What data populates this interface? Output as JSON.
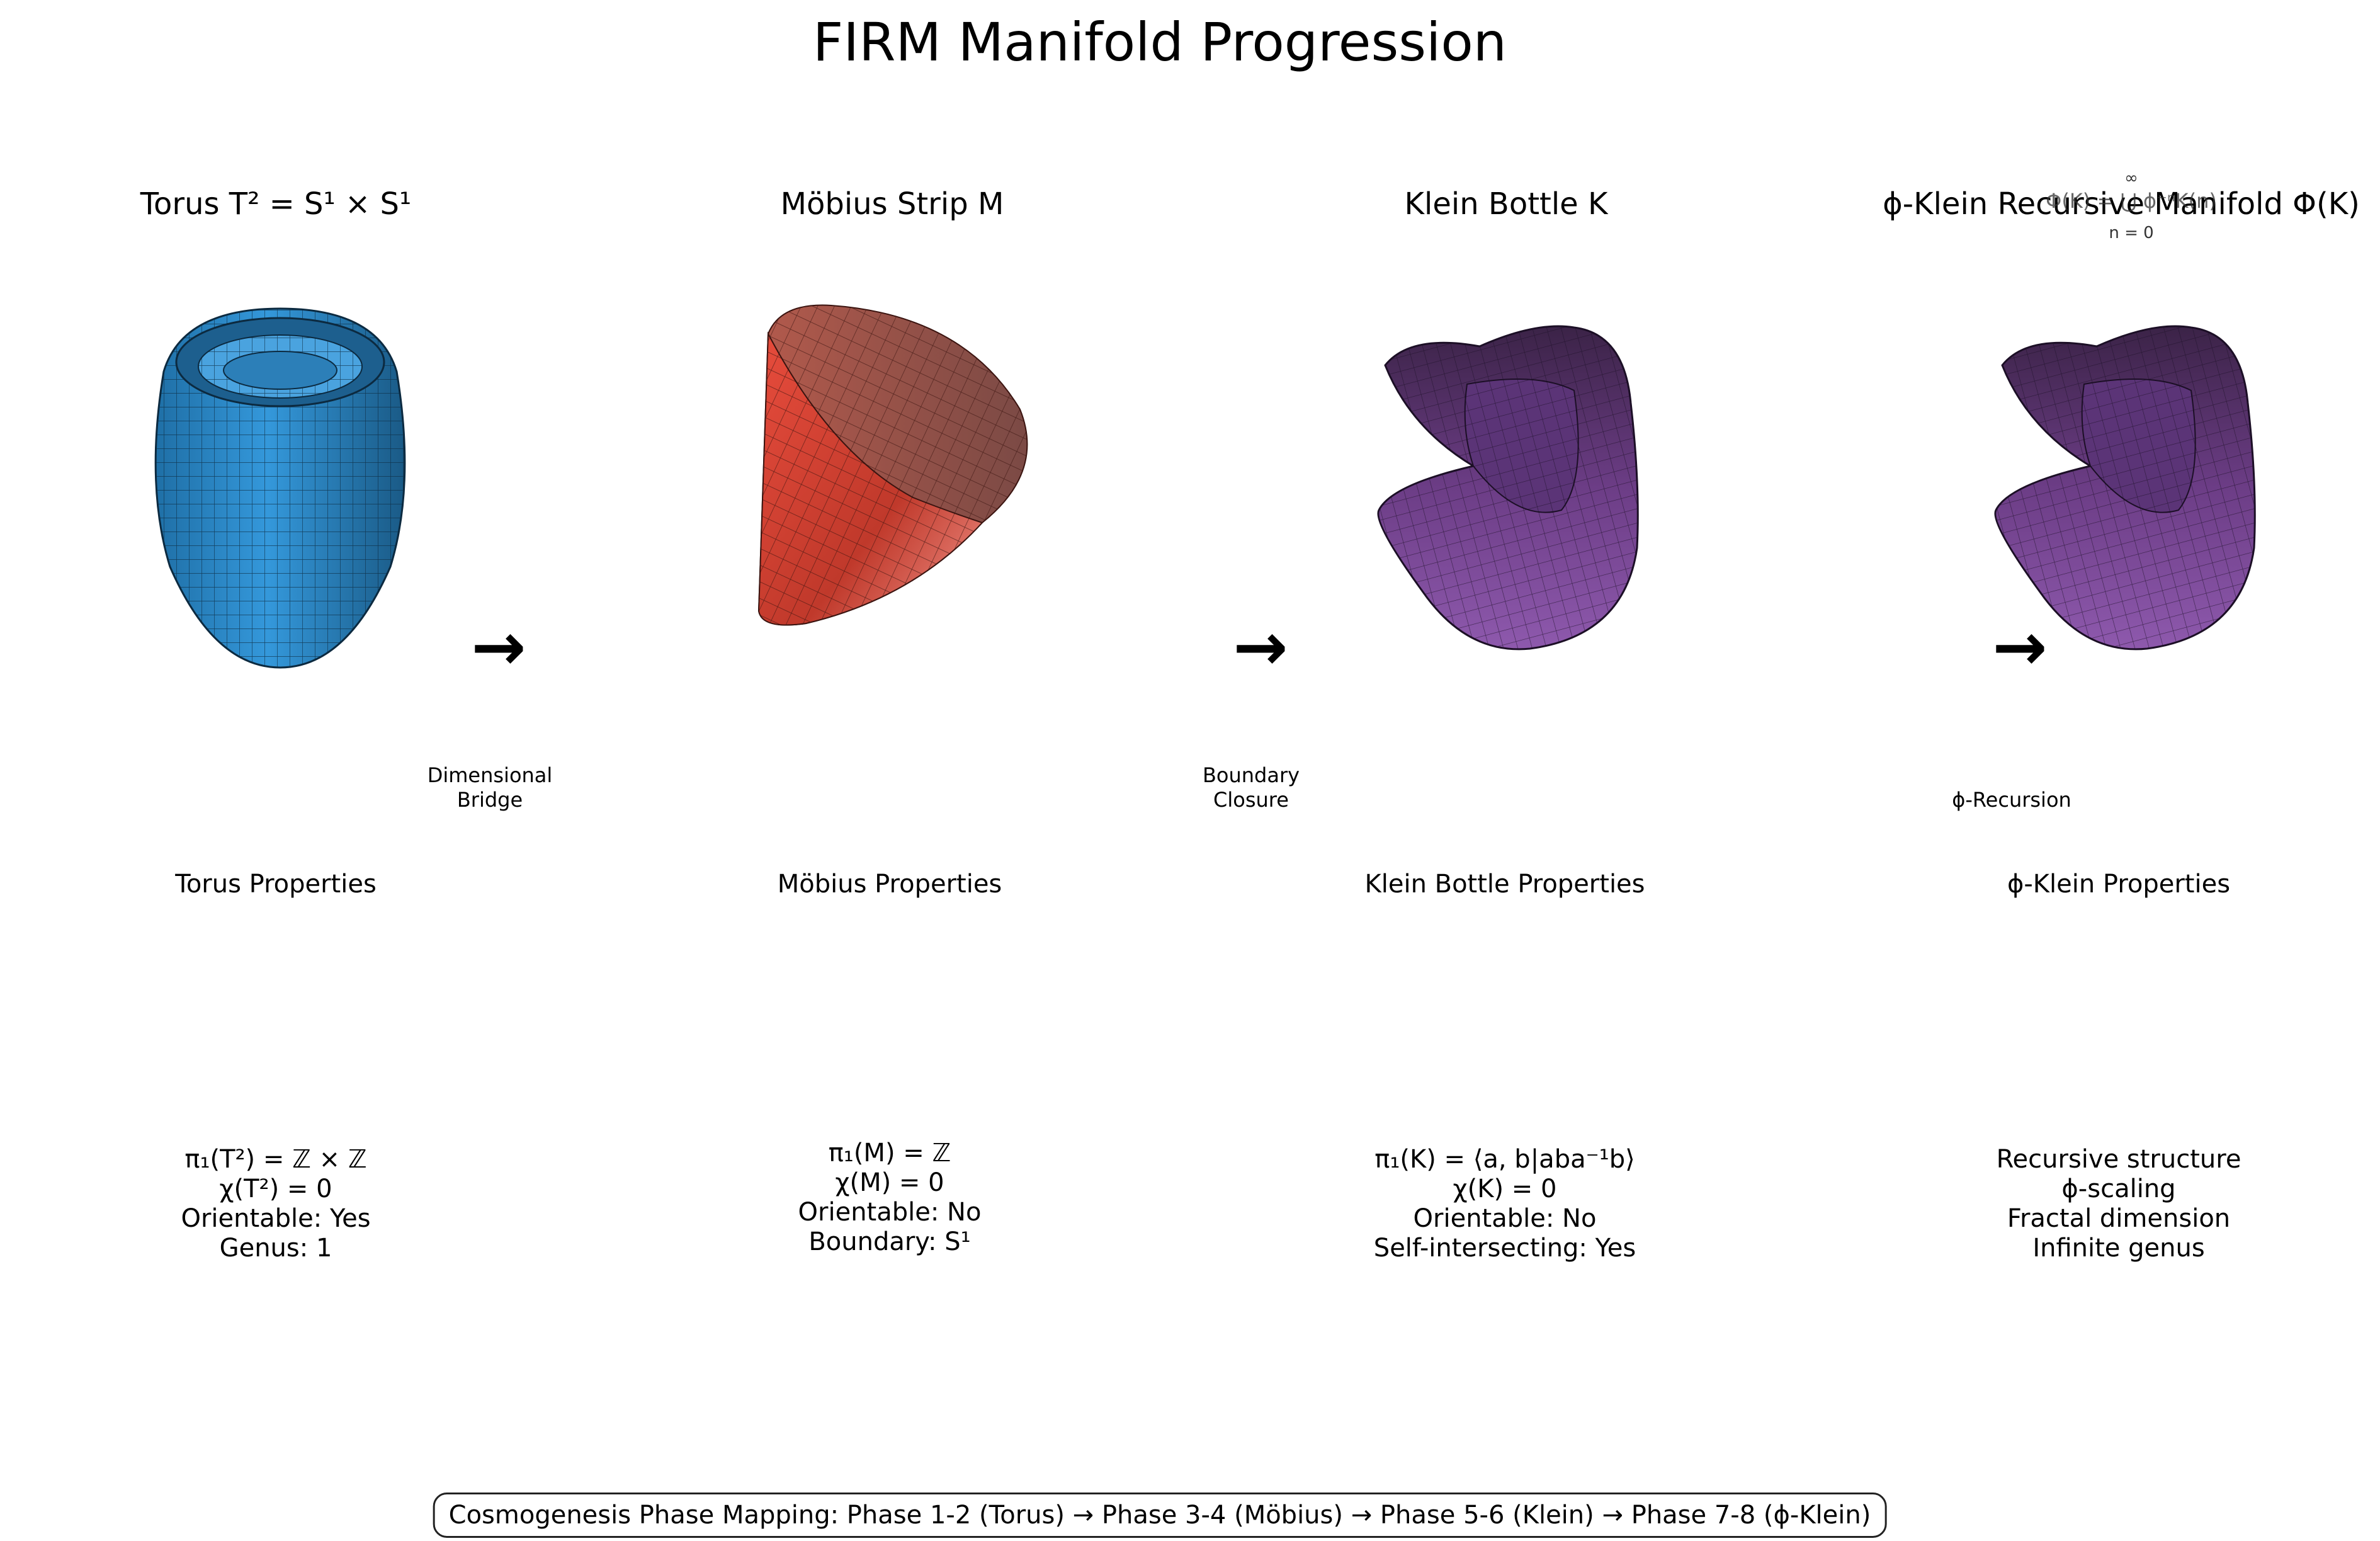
{
  "title": "FIRM Manifold Progression",
  "panels": [
    {
      "title": "Torus T² = S¹ × S¹",
      "color": "#2e86c1",
      "props_title": "Torus Properties",
      "props": [
        "π₁(T²) = ℤ × ℤ",
        "χ(T²) = 0",
        "Orientable: Yes",
        "Genus: 1"
      ]
    },
    {
      "title": "Möbius Strip M",
      "color": "#e74c3c",
      "props_title": "Möbius Properties",
      "props": [
        "π₁(M) = ℤ",
        "χ(M) = 0",
        "Orientable: No",
        "Boundary: S¹"
      ]
    },
    {
      "title": "Klein Bottle K",
      "color": "#8e44ad",
      "props_title": "Klein Bottle Properties",
      "props": [
        "π₁(K) = ⟨a, b|aba⁻¹b⟩",
        "χ(K) = 0",
        "Orientable: No",
        "Self-intersecting: Yes"
      ]
    },
    {
      "title": "ϕ-Klein Recursive Manifold Φ(K)",
      "color": "#8e44ad",
      "props_title": "ϕ-Klein Properties",
      "props": [
        "Recursive structure",
        "ϕ-scaling",
        "Fractal dimension",
        "Infinite genus"
      ]
    }
  ],
  "overlay_equation": {
    "upper": "∞",
    "main": "Φ(K) = ⋃ ϕ⁻ⁿK(n)",
    "lower": "n = 0"
  },
  "arrows": [
    {
      "symbol": "→",
      "label_lines": [
        "Dimensional",
        "Bridge"
      ]
    },
    {
      "symbol": "→",
      "label_lines": [
        "Boundary",
        "Closure"
      ]
    },
    {
      "symbol": "→",
      "label_lines": [
        "ϕ-Recursion"
      ]
    }
  ],
  "footer": "Cosmogenesis Phase Mapping: Phase 1-2 (Torus) → Phase 3-4 (Möbius) → Phase 5-6 (Klein) → Phase 7-8 (ϕ-Klein)"
}
